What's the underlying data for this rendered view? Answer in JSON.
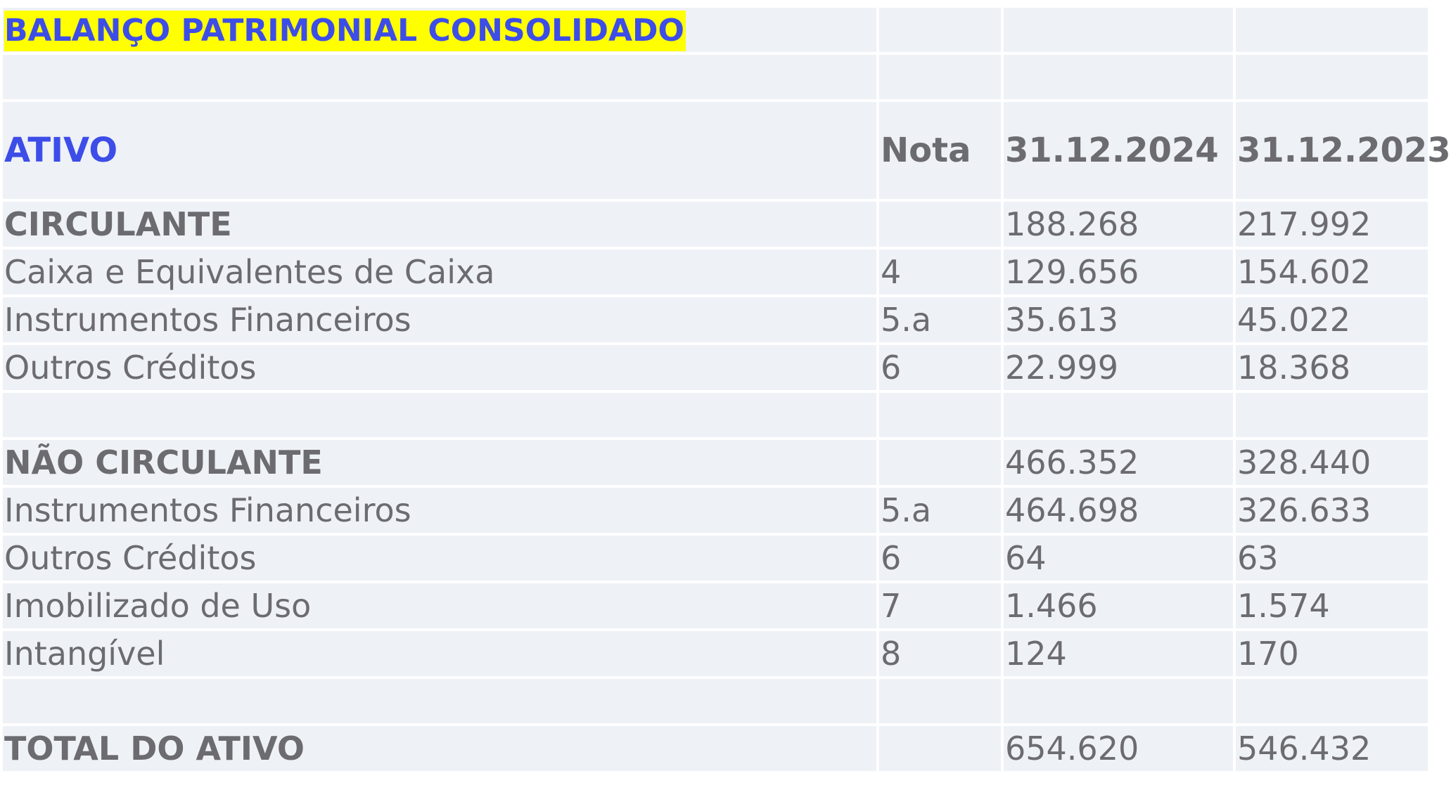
{
  "title": "BALANÇO PATRIMONIAL CONSOLIDADO",
  "header": {
    "label": "ATIVO",
    "nota": "Nota",
    "col1": "31.12.2024",
    "col2": "31.12.2023"
  },
  "rows": [
    {
      "label": "CIRCULANTE",
      "nota": "",
      "v2024": "188.268",
      "v2023": "217.992"
    },
    {
      "label": "Caixa e Equivalentes de Caixa",
      "nota": "4",
      "v2024": "129.656",
      "v2023": "154.602"
    },
    {
      "label": "Instrumentos Financeiros",
      "nota": "5.a",
      "v2024": "35.613",
      "v2023": "45.022"
    },
    {
      "label": "Outros Créditos",
      "nota": "6",
      "v2024": "22.999",
      "v2023": "18.368"
    },
    {
      "label": "NÃO CIRCULANTE",
      "nota": "",
      "v2024": "466.352",
      "v2023": "328.440"
    },
    {
      "label": "Instrumentos Financeiros",
      "nota": "5.a",
      "v2024": "464.698",
      "v2023": "326.633"
    },
    {
      "label": "Outros Créditos",
      "nota": "6",
      "v2024": "64",
      "v2023": "63"
    },
    {
      "label": "Imobilizado de Uso",
      "nota": "7",
      "v2024": "1.466",
      "v2023": "1.574"
    },
    {
      "label": "Intangível",
      "nota": "8",
      "v2024": "124",
      "v2023": "170"
    },
    {
      "label": "TOTAL DO ATIVO",
      "nota": "",
      "v2024": "654.620",
      "v2023": "546.432"
    }
  ],
  "colors": {
    "title_text": "#3d4de8",
    "title_highlight": "#ffff00",
    "cell_background": "#eef1f6",
    "body_text": "#6b6b70"
  }
}
